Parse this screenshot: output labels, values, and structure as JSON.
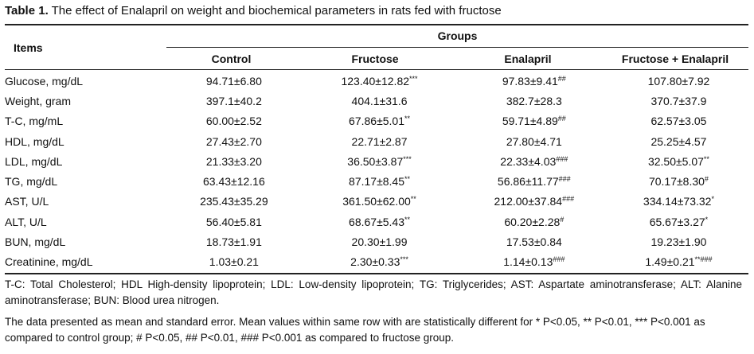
{
  "caption": {
    "label": "Table 1.",
    "text": " The effect of Enalapril on weight and biochemical parameters in rats fed with fructose"
  },
  "header": {
    "items": "Items",
    "groups": "Groups",
    "columns": [
      "Control",
      "Fructose",
      "Enalapril",
      "Fructose + Enalapril"
    ]
  },
  "rows": [
    {
      "item": "Glucose, mg/dL",
      "cells": [
        [
          "94.71±6.80",
          ""
        ],
        [
          "123.40±12.82",
          "***"
        ],
        [
          "97.83±9.41",
          "##"
        ],
        [
          "107.80±7.92",
          ""
        ]
      ]
    },
    {
      "item": "Weight, gram",
      "cells": [
        [
          "397.1±40.2",
          ""
        ],
        [
          "404.1±31.6",
          ""
        ],
        [
          "382.7±28.3",
          ""
        ],
        [
          "370.7±37.9",
          ""
        ]
      ]
    },
    {
      "item": "T-C, mg/mL",
      "cells": [
        [
          "60.00±2.52",
          ""
        ],
        [
          "67.86±5.01",
          "**"
        ],
        [
          "59.71±4.89",
          "##"
        ],
        [
          "62.57±3.05",
          ""
        ]
      ]
    },
    {
      "item": "HDL, mg/dL",
      "cells": [
        [
          "27.43±2.70",
          ""
        ],
        [
          "22.71±2.87",
          ""
        ],
        [
          "27.80±4.71",
          ""
        ],
        [
          "25.25±4.57",
          ""
        ]
      ]
    },
    {
      "item": "LDL, mg/dL",
      "cells": [
        [
          "21.33±3.20",
          ""
        ],
        [
          "36.50±3.87",
          "***"
        ],
        [
          "22.33±4.03",
          "###"
        ],
        [
          "32.50±5.07",
          "**"
        ]
      ]
    },
    {
      "item": "TG, mg/dL",
      "cells": [
        [
          "63.43±12.16",
          ""
        ],
        [
          "87.17±8.45",
          "**"
        ],
        [
          "56.86±11.77",
          "###"
        ],
        [
          "70.17±8.30",
          "#"
        ]
      ]
    },
    {
      "item": "AST, U/L",
      "cells": [
        [
          "235.43±35.29",
          ""
        ],
        [
          "361.50±62.00",
          "**"
        ],
        [
          "212.00±37.84",
          "###"
        ],
        [
          "334.14±73.32",
          "*"
        ]
      ]
    },
    {
      "item": "ALT, U/L",
      "cells": [
        [
          "56.40±5.81",
          ""
        ],
        [
          "68.67±5.43",
          "**"
        ],
        [
          "60.20±2.28",
          "#"
        ],
        [
          "65.67±3.27",
          "*"
        ]
      ]
    },
    {
      "item": "BUN, mg/dL",
      "cells": [
        [
          "18.73±1.91",
          ""
        ],
        [
          "20.30±1.99",
          ""
        ],
        [
          "17.53±0.84",
          ""
        ],
        [
          "19.23±1.90",
          ""
        ]
      ]
    },
    {
      "item": "Creatinine, mg/dL",
      "cells": [
        [
          "1.03±0.21",
          ""
        ],
        [
          "2.30±0.33",
          "***"
        ],
        [
          "1.14±0.13",
          "###"
        ],
        [
          "1.49±0.21",
          "**###"
        ]
      ]
    }
  ],
  "notes": {
    "abbreviations": "T-C: Total Cholesterol; HDL High-density lipoprotein; LDL: Low-density lipoprotein; TG: Triglycerides; AST: Aspartate aminotransferase; ALT: Alanine aminotransferase; BUN: Blood urea nitrogen.",
    "statistics": "The data presented as mean and standard error. Mean values within same row with are statistically different for * P<0.05, ** P<0.01, *** P<0.001 as compared to control group; # P<0.05, ## P<0.01, ### P<0.001 as compared to fructose group."
  }
}
